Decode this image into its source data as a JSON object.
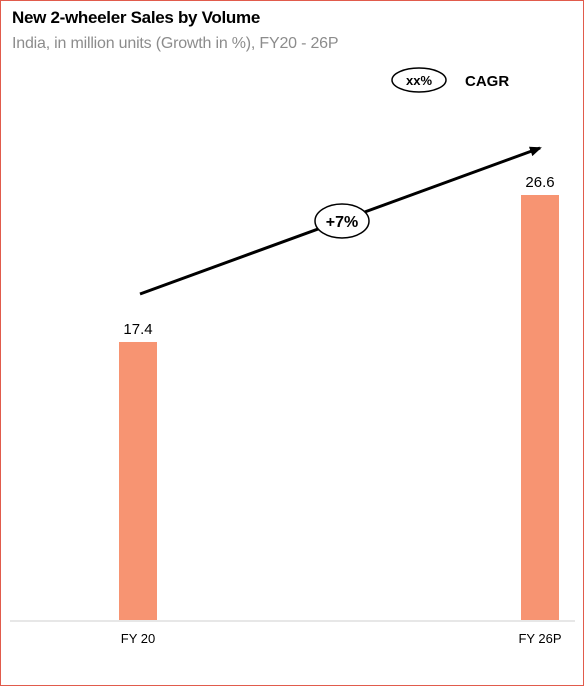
{
  "chart_data": {
    "type": "bar",
    "title": "New 2-wheeler Sales by Volume",
    "subtitle": "India, in million units (Growth in %), FY20 - 26P",
    "categories": [
      "FY 20",
      "FY 26P"
    ],
    "values": [
      17.4,
      26.6
    ],
    "value_labels": [
      "17.4",
      "26.6"
    ],
    "ylim": [
      0,
      26.6
    ],
    "grid": false,
    "bar_color": "#f79472",
    "annotation": {
      "label": "+7%",
      "type": "CAGR arrow"
    },
    "legend": {
      "symbol_label": "xx%",
      "text": "CAGR",
      "position": "top-right"
    }
  },
  "colors": {
    "border": "#e15b4c",
    "bar": "#f79472",
    "text": "#000000",
    "subtitle": "#8c8c8c"
  }
}
